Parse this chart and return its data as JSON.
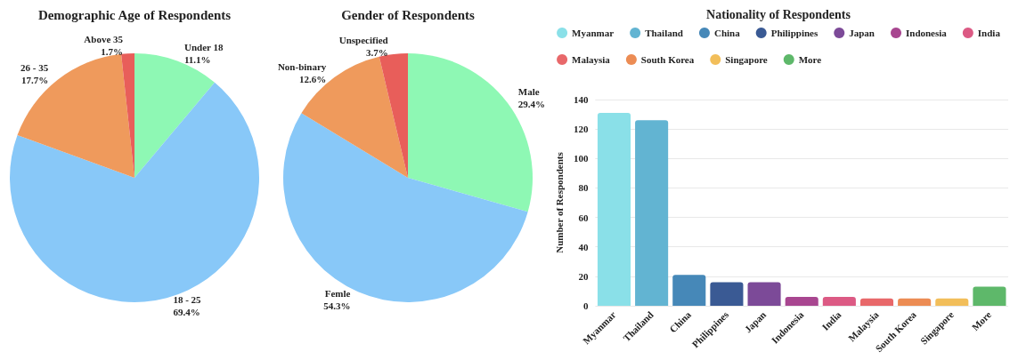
{
  "chart_data": [
    {
      "type": "pie",
      "title": "Demographic Age of Respondents",
      "categories": [
        "Under 18",
        "18 - 25",
        "26 - 35",
        "Above 35"
      ],
      "values": [
        11.1,
        69.4,
        17.7,
        1.7
      ],
      "value_labels": [
        "11.1%",
        "69.4%",
        "17.7%",
        "1.7%"
      ],
      "colors": [
        "#8ef8b4",
        "#88c8f8",
        "#ef9a5c",
        "#e85e5a"
      ],
      "legend": false
    },
    {
      "type": "pie",
      "title": "Gender of Respondents",
      "categories": [
        "Male",
        "Femle",
        "Non-binary",
        "Unspecified"
      ],
      "values": [
        29.4,
        54.3,
        12.6,
        3.7
      ],
      "value_labels": [
        "29.4%",
        "54.3%",
        "12.6%",
        "3.7%"
      ],
      "colors": [
        "#8ef8b4",
        "#88c8f8",
        "#ef9a5c",
        "#e85e5a"
      ],
      "legend": false
    },
    {
      "type": "bar",
      "title": "Nationality of Respondents",
      "ylabel": "Number of Respondents",
      "categories": [
        "Myanmar",
        "Thailand",
        "China",
        "Philippines",
        "Japan",
        "Indonesia",
        "India",
        "Malaysia",
        "South Korea",
        "Singapore",
        "More"
      ],
      "series": [
        {
          "name": "Myanmar",
          "color": "#8ae0e8",
          "values": [
            131,
            null,
            null,
            null,
            null,
            null,
            null,
            null,
            null,
            null,
            null
          ]
        },
        {
          "name": "Thailand",
          "color": "#62b4d2",
          "values": [
            null,
            126,
            null,
            null,
            null,
            null,
            null,
            null,
            null,
            null,
            null
          ]
        },
        {
          "name": "China",
          "color": "#4688b8",
          "values": [
            null,
            null,
            21,
            null,
            null,
            null,
            null,
            null,
            null,
            null,
            null
          ]
        },
        {
          "name": "Philippines",
          "color": "#3a5a94",
          "values": [
            null,
            null,
            null,
            16,
            null,
            null,
            null,
            null,
            null,
            null,
            null
          ]
        },
        {
          "name": "Japan",
          "color": "#7c4a98",
          "values": [
            null,
            null,
            null,
            null,
            16,
            null,
            null,
            null,
            null,
            null,
            null
          ]
        },
        {
          "name": "Indonesia",
          "color": "#a84690",
          "values": [
            null,
            null,
            null,
            null,
            null,
            6,
            null,
            null,
            null,
            null,
            null
          ]
        },
        {
          "name": "India",
          "color": "#dc5a84",
          "values": [
            null,
            null,
            null,
            null,
            null,
            null,
            6,
            null,
            null,
            null,
            null
          ]
        },
        {
          "name": "Malaysia",
          "color": "#e8686a",
          "values": [
            null,
            null,
            null,
            null,
            null,
            null,
            null,
            5,
            null,
            null,
            null
          ]
        },
        {
          "name": "South Korea",
          "color": "#ec8c54",
          "values": [
            null,
            null,
            null,
            null,
            null,
            null,
            null,
            null,
            5,
            null,
            null
          ]
        },
        {
          "name": "Singapore",
          "color": "#f2be5a",
          "values": [
            null,
            null,
            null,
            null,
            null,
            null,
            null,
            null,
            null,
            5,
            null
          ]
        },
        {
          "name": "More",
          "color": "#5eb86a",
          "values": [
            null,
            null,
            null,
            null,
            null,
            null,
            null,
            null,
            null,
            null,
            13
          ]
        }
      ],
      "ylim": [
        0,
        140
      ],
      "yticks": [
        0,
        20,
        40,
        60,
        80,
        100,
        120,
        140
      ],
      "grid": "y",
      "legend": "top"
    }
  ]
}
